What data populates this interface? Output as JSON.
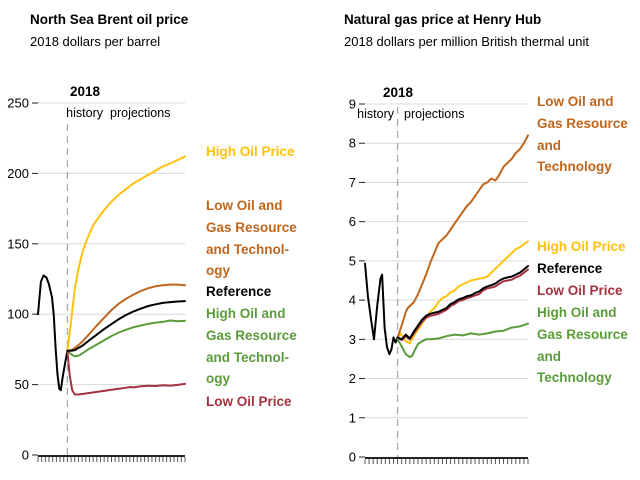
{
  "style": {
    "background": "#ffffff",
    "grid_color": "#d9d9d9",
    "divider_color": "#aaaaaa",
    "axis_color": "#222222",
    "xtick_color": "#555555",
    "text_color": "#000000"
  },
  "chart_data": [
    {
      "type": "line",
      "title": "North Sea Brent oil price",
      "subtitle": "2018 dollars per barrel",
      "xlabel": "",
      "ylabel": "2018 dollars per barrel",
      "xlim": [
        2010,
        2050
      ],
      "ylim": [
        0,
        250
      ],
      "yticks": [
        0,
        50,
        100,
        150,
        200,
        250
      ],
      "xticks": {
        "start": 2010,
        "end": 2050,
        "step": 1
      },
      "grid": "horizontal",
      "legend_position": "right",
      "divider": {
        "x": 2018,
        "year_label": "2018",
        "left_label": "history",
        "right_label": "projections"
      },
      "series": [
        {
          "name": "History",
          "color": "#000000",
          "x": [
            2010,
            2010.8,
            2011.5,
            2012.3,
            2013,
            2013.8,
            2014.3,
            2014.8,
            2015.3,
            2015.8,
            2016.2,
            2016.7,
            2017.3,
            2018
          ],
          "values": [
            100,
            123,
            127.5,
            126,
            121,
            112,
            99,
            76,
            57,
            47,
            46,
            55,
            64,
            74
          ]
        },
        {
          "name": "High Oil and Gas Resource and Technology",
          "color": "#5a9c3a",
          "x": [
            2018,
            2019,
            2020,
            2021,
            2022,
            2024,
            2026,
            2028,
            2030,
            2032,
            2034,
            2036,
            2038,
            2040,
            2042,
            2044,
            2046,
            2048,
            2050
          ],
          "values": [
            74,
            71.5,
            70,
            70.5,
            72,
            75.5,
            78.5,
            81.5,
            84.5,
            87,
            89,
            90.8,
            92,
            93.2,
            94,
            94.5,
            95.5,
            95,
            95.3
          ]
        },
        {
          "name": "High Oil Price",
          "color": "#fec10e",
          "x": [
            2018,
            2019,
            2020,
            2021,
            2022,
            2023,
            2024,
            2025,
            2026,
            2028,
            2030,
            2032,
            2034,
            2036,
            2038,
            2040,
            2042,
            2044,
            2046,
            2048,
            2050
          ],
          "values": [
            74,
            95,
            118,
            132,
            143,
            151,
            157,
            163,
            167,
            174,
            180,
            185,
            189,
            193,
            196,
            199,
            202,
            205,
            207,
            209.5,
            212
          ]
        },
        {
          "name": "Low Oil Price",
          "color": "#a4333f",
          "x": [
            2018,
            2018.6,
            2019.3,
            2020,
            2021,
            2022,
            2024,
            2026,
            2028,
            2030,
            2032,
            2034,
            2035,
            2036,
            2038,
            2040,
            2042,
            2044,
            2046,
            2048,
            2050
          ],
          "values": [
            74,
            57,
            46,
            43,
            43,
            43.3,
            44,
            44.8,
            45.5,
            46.3,
            47,
            47.8,
            48.3,
            48,
            48.8,
            49.2,
            49,
            49.5,
            49.3,
            49.8,
            50.5
          ]
        },
        {
          "name": "Low Oil and Gas Resource and Technology",
          "color": "#c0651c",
          "x": [
            2018,
            2019,
            2020,
            2021,
            2022,
            2024,
            2026,
            2028,
            2030,
            2032,
            2034,
            2036,
            2038,
            2040,
            2042,
            2044,
            2046,
            2048,
            2050
          ],
          "values": [
            74,
            74.5,
            76,
            78,
            80.5,
            86,
            92,
            97.5,
            103,
            107.5,
            111,
            114,
            116.5,
            118.5,
            119.8,
            120.5,
            121,
            121,
            120.5
          ]
        },
        {
          "name": "Reference",
          "color": "#000000",
          "x": [
            2018,
            2019,
            2020,
            2021,
            2022,
            2024,
            2026,
            2028,
            2030,
            2032,
            2034,
            2036,
            2038,
            2040,
            2042,
            2044,
            2046,
            2048,
            2050
          ],
          "values": [
            74,
            74,
            74.5,
            76,
            77.5,
            81.5,
            85.5,
            89.5,
            93,
            96.5,
            99.5,
            102,
            104,
            105.8,
            107,
            108,
            108.6,
            109,
            109.3
          ]
        }
      ],
      "legend": [
        {
          "label_lines": [
            "High Oil Price"
          ],
          "color": "#fec10e"
        },
        {
          "label_lines": [
            "Low Oil and",
            "Gas Resource",
            "and Technol-",
            "ogy"
          ],
          "color": "#c0651c"
        },
        {
          "label_lines": [
            "Reference"
          ],
          "color": "#000000"
        },
        {
          "label_lines": [
            "High Oil and",
            "Gas Resource",
            "and Technol-",
            "ogy"
          ],
          "color": "#5a9c3a"
        },
        {
          "label_lines": [
            "Low Oil Price"
          ],
          "color": "#a4333f"
        }
      ]
    },
    {
      "type": "line",
      "title": "Natural gas price at Henry Hub",
      "subtitle": "2018 dollars per million British thermal unit",
      "xlabel": "",
      "ylabel": "2018 dollars per million British thermal unit",
      "xlim": [
        2010,
        2050
      ],
      "ylim": [
        0,
        9
      ],
      "yticks": [
        0,
        1,
        2,
        3,
        4,
        5,
        6,
        7,
        8,
        9
      ],
      "xticks": {
        "start": 2010,
        "end": 2050,
        "step": 1
      },
      "grid": "horizontal",
      "legend_position": "right",
      "divider": {
        "x": 2018,
        "year_label": "2018",
        "left_label": "history",
        "right_label": "projections"
      },
      "series": [
        {
          "name": "History",
          "color": "#000000",
          "x": [
            2010,
            2010.7,
            2011.5,
            2012.2,
            2013,
            2013.8,
            2014.2,
            2014.8,
            2015.4,
            2016,
            2016.5,
            2017,
            2017.5,
            2018
          ],
          "values": [
            4.93,
            4.1,
            3.5,
            3.0,
            3.85,
            4.55,
            4.65,
            3.3,
            2.8,
            2.62,
            2.75,
            3.05,
            2.92,
            3.05
          ]
        },
        {
          "name": "High Oil and Gas Resource and Technology",
          "color": "#5a9c3a",
          "x": [
            2018,
            2019,
            2020,
            2021,
            2021.5,
            2022,
            2023,
            2024,
            2025,
            2026,
            2028,
            2030,
            2032,
            2034,
            2036,
            2038,
            2040,
            2042,
            2044,
            2046,
            2048,
            2050
          ],
          "values": [
            3.0,
            2.82,
            2.62,
            2.55,
            2.57,
            2.68,
            2.88,
            2.95,
            3.0,
            3.0,
            3.02,
            3.08,
            3.12,
            3.1,
            3.15,
            3.12,
            3.15,
            3.2,
            3.22,
            3.3,
            3.33,
            3.4
          ]
        },
        {
          "name": "High Oil Price",
          "color": "#fec10e",
          "x": [
            2018,
            2018.7,
            2019.3,
            2020,
            2021,
            2022,
            2023,
            2024,
            2025,
            2026,
            2027,
            2028,
            2029,
            2030,
            2031,
            2032,
            2033,
            2034,
            2035,
            2036,
            2037,
            2038,
            2039,
            2040,
            2041,
            2042,
            2043,
            2044,
            2045,
            2046,
            2047,
            2048,
            2049,
            2050
          ],
          "values": [
            3.05,
            3.15,
            3.05,
            2.95,
            2.9,
            3.1,
            3.25,
            3.4,
            3.55,
            3.7,
            3.8,
            3.95,
            4.05,
            4.1,
            4.2,
            4.25,
            4.35,
            4.4,
            4.45,
            4.5,
            4.52,
            4.55,
            4.56,
            4.6,
            4.7,
            4.8,
            4.9,
            5.0,
            5.1,
            5.2,
            5.3,
            5.35,
            5.42,
            5.5
          ]
        },
        {
          "name": "Low Oil Price",
          "color": "#a4333f",
          "x": [
            2018,
            2019,
            2020,
            2021,
            2022,
            2023,
            2024,
            2025,
            2026,
            2027,
            2028,
            2029,
            2030,
            2031,
            2032,
            2033,
            2034,
            2035,
            2036,
            2037,
            2038,
            2039,
            2040,
            2041,
            2042,
            2043,
            2044,
            2045,
            2046,
            2047,
            2048,
            2049,
            2050
          ],
          "values": [
            3.05,
            2.98,
            3.08,
            3.0,
            3.15,
            3.3,
            3.45,
            3.55,
            3.6,
            3.62,
            3.65,
            3.7,
            3.75,
            3.85,
            3.9,
            3.98,
            4.0,
            4.05,
            4.08,
            4.12,
            4.15,
            4.25,
            4.3,
            4.32,
            4.35,
            4.42,
            4.48,
            4.5,
            4.52,
            4.58,
            4.62,
            4.7,
            4.78
          ]
        },
        {
          "name": "Low Oil and Gas Resource and Technology",
          "color": "#c0651c",
          "x": [
            2018,
            2019,
            2020,
            2020.5,
            2021,
            2022,
            2023,
            2024,
            2025,
            2026,
            2027,
            2028,
            2029,
            2030,
            2031,
            2032,
            2033,
            2034,
            2035,
            2036,
            2037,
            2038,
            2039,
            2040,
            2041,
            2042,
            2043,
            2044,
            2045,
            2046,
            2047,
            2048,
            2049,
            2050
          ],
          "values": [
            3.05,
            3.35,
            3.7,
            3.8,
            3.85,
            3.95,
            4.15,
            4.4,
            4.65,
            4.95,
            5.2,
            5.45,
            5.55,
            5.65,
            5.8,
            5.95,
            6.1,
            6.25,
            6.4,
            6.5,
            6.65,
            6.8,
            6.95,
            7.0,
            7.1,
            7.05,
            7.2,
            7.4,
            7.5,
            7.6,
            7.75,
            7.85,
            8.0,
            8.2
          ]
        },
        {
          "name": "Reference",
          "color": "#000000",
          "x": [
            2018,
            2019,
            2020,
            2021,
            2022,
            2023,
            2024,
            2025,
            2026,
            2027,
            2028,
            2029,
            2030,
            2031,
            2032,
            2033,
            2034,
            2035,
            2036,
            2037,
            2038,
            2039,
            2040,
            2041,
            2042,
            2043,
            2044,
            2045,
            2046,
            2047,
            2048,
            2049,
            2050
          ],
          "values": [
            3.05,
            3.0,
            3.12,
            3.02,
            3.2,
            3.35,
            3.5,
            3.6,
            3.65,
            3.68,
            3.7,
            3.75,
            3.8,
            3.9,
            3.95,
            4.02,
            4.05,
            4.1,
            4.12,
            4.18,
            4.22,
            4.3,
            4.35,
            4.38,
            4.42,
            4.5,
            4.55,
            4.58,
            4.6,
            4.65,
            4.7,
            4.78,
            4.87
          ]
        }
      ],
      "legend": [
        {
          "label_lines": [
            "Low Oil and",
            "Gas Resource",
            "and",
            "Technology"
          ],
          "color": "#c0651c"
        },
        {
          "label_lines": [
            "High Oil Price"
          ],
          "color": "#fec10e"
        },
        {
          "label_lines": [
            "Reference"
          ],
          "color": "#000000"
        },
        {
          "label_lines": [
            "Low Oil Price"
          ],
          "color": "#a4333f"
        },
        {
          "label_lines": [
            "High Oil and",
            "Gas Resource",
            "and",
            "Technology"
          ],
          "color": "#5a9c3a"
        }
      ]
    }
  ]
}
